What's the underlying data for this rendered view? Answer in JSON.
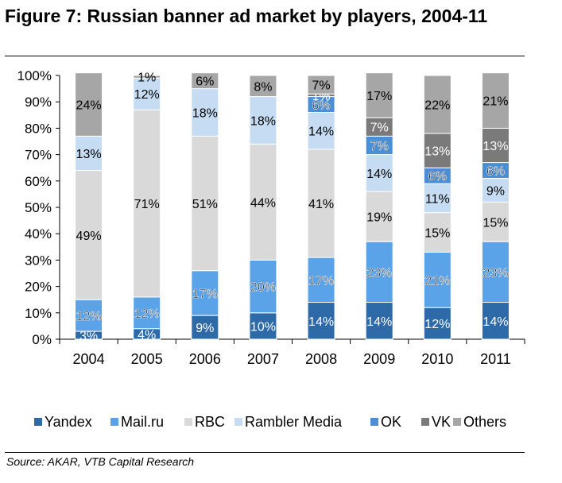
{
  "figure": {
    "title": "Figure 7: Russian banner ad market by players, 2004-11",
    "source": "Source: AKAR, VTB Capital Research"
  },
  "chart_data": {
    "type": "bar",
    "stacked": true,
    "categories": [
      "2004",
      "2005",
      "2006",
      "2007",
      "2008",
      "2009",
      "2010",
      "2011"
    ],
    "ylim": [
      0,
      100
    ],
    "yticks": [
      "0%",
      "10%",
      "20%",
      "30%",
      "40%",
      "50%",
      "60%",
      "70%",
      "80%",
      "90%",
      "100%"
    ],
    "legend_position": "bottom",
    "series": [
      {
        "name": "Yandex",
        "color": "#2e6aa8",
        "values": [
          3,
          4,
          9,
          10,
          14,
          14,
          12,
          14
        ]
      },
      {
        "name": "Mail.ru",
        "color": "#5ba3e8",
        "values": [
          12,
          12,
          17,
          20,
          17,
          23,
          21,
          23
        ]
      },
      {
        "name": "RBC",
        "color": "#d9d9d9",
        "values": [
          49,
          71,
          51,
          44,
          41,
          19,
          15,
          15
        ]
      },
      {
        "name": "Rambler Media",
        "color": "#c6dcf2",
        "values": [
          13,
          12,
          18,
          18,
          14,
          14,
          11,
          9
        ]
      },
      {
        "name": "OK",
        "color": "#4a8fd4",
        "values": [
          0,
          0,
          0,
          0,
          6,
          7,
          6,
          6
        ]
      },
      {
        "name": "VK",
        "color": "#7a7a7a",
        "values": [
          0,
          0,
          0,
          0,
          1,
          7,
          13,
          13
        ]
      },
      {
        "name": "Others",
        "color": "#a6a6a6",
        "values": [
          24,
          1,
          6,
          8,
          7,
          17,
          22,
          21
        ]
      }
    ]
  }
}
